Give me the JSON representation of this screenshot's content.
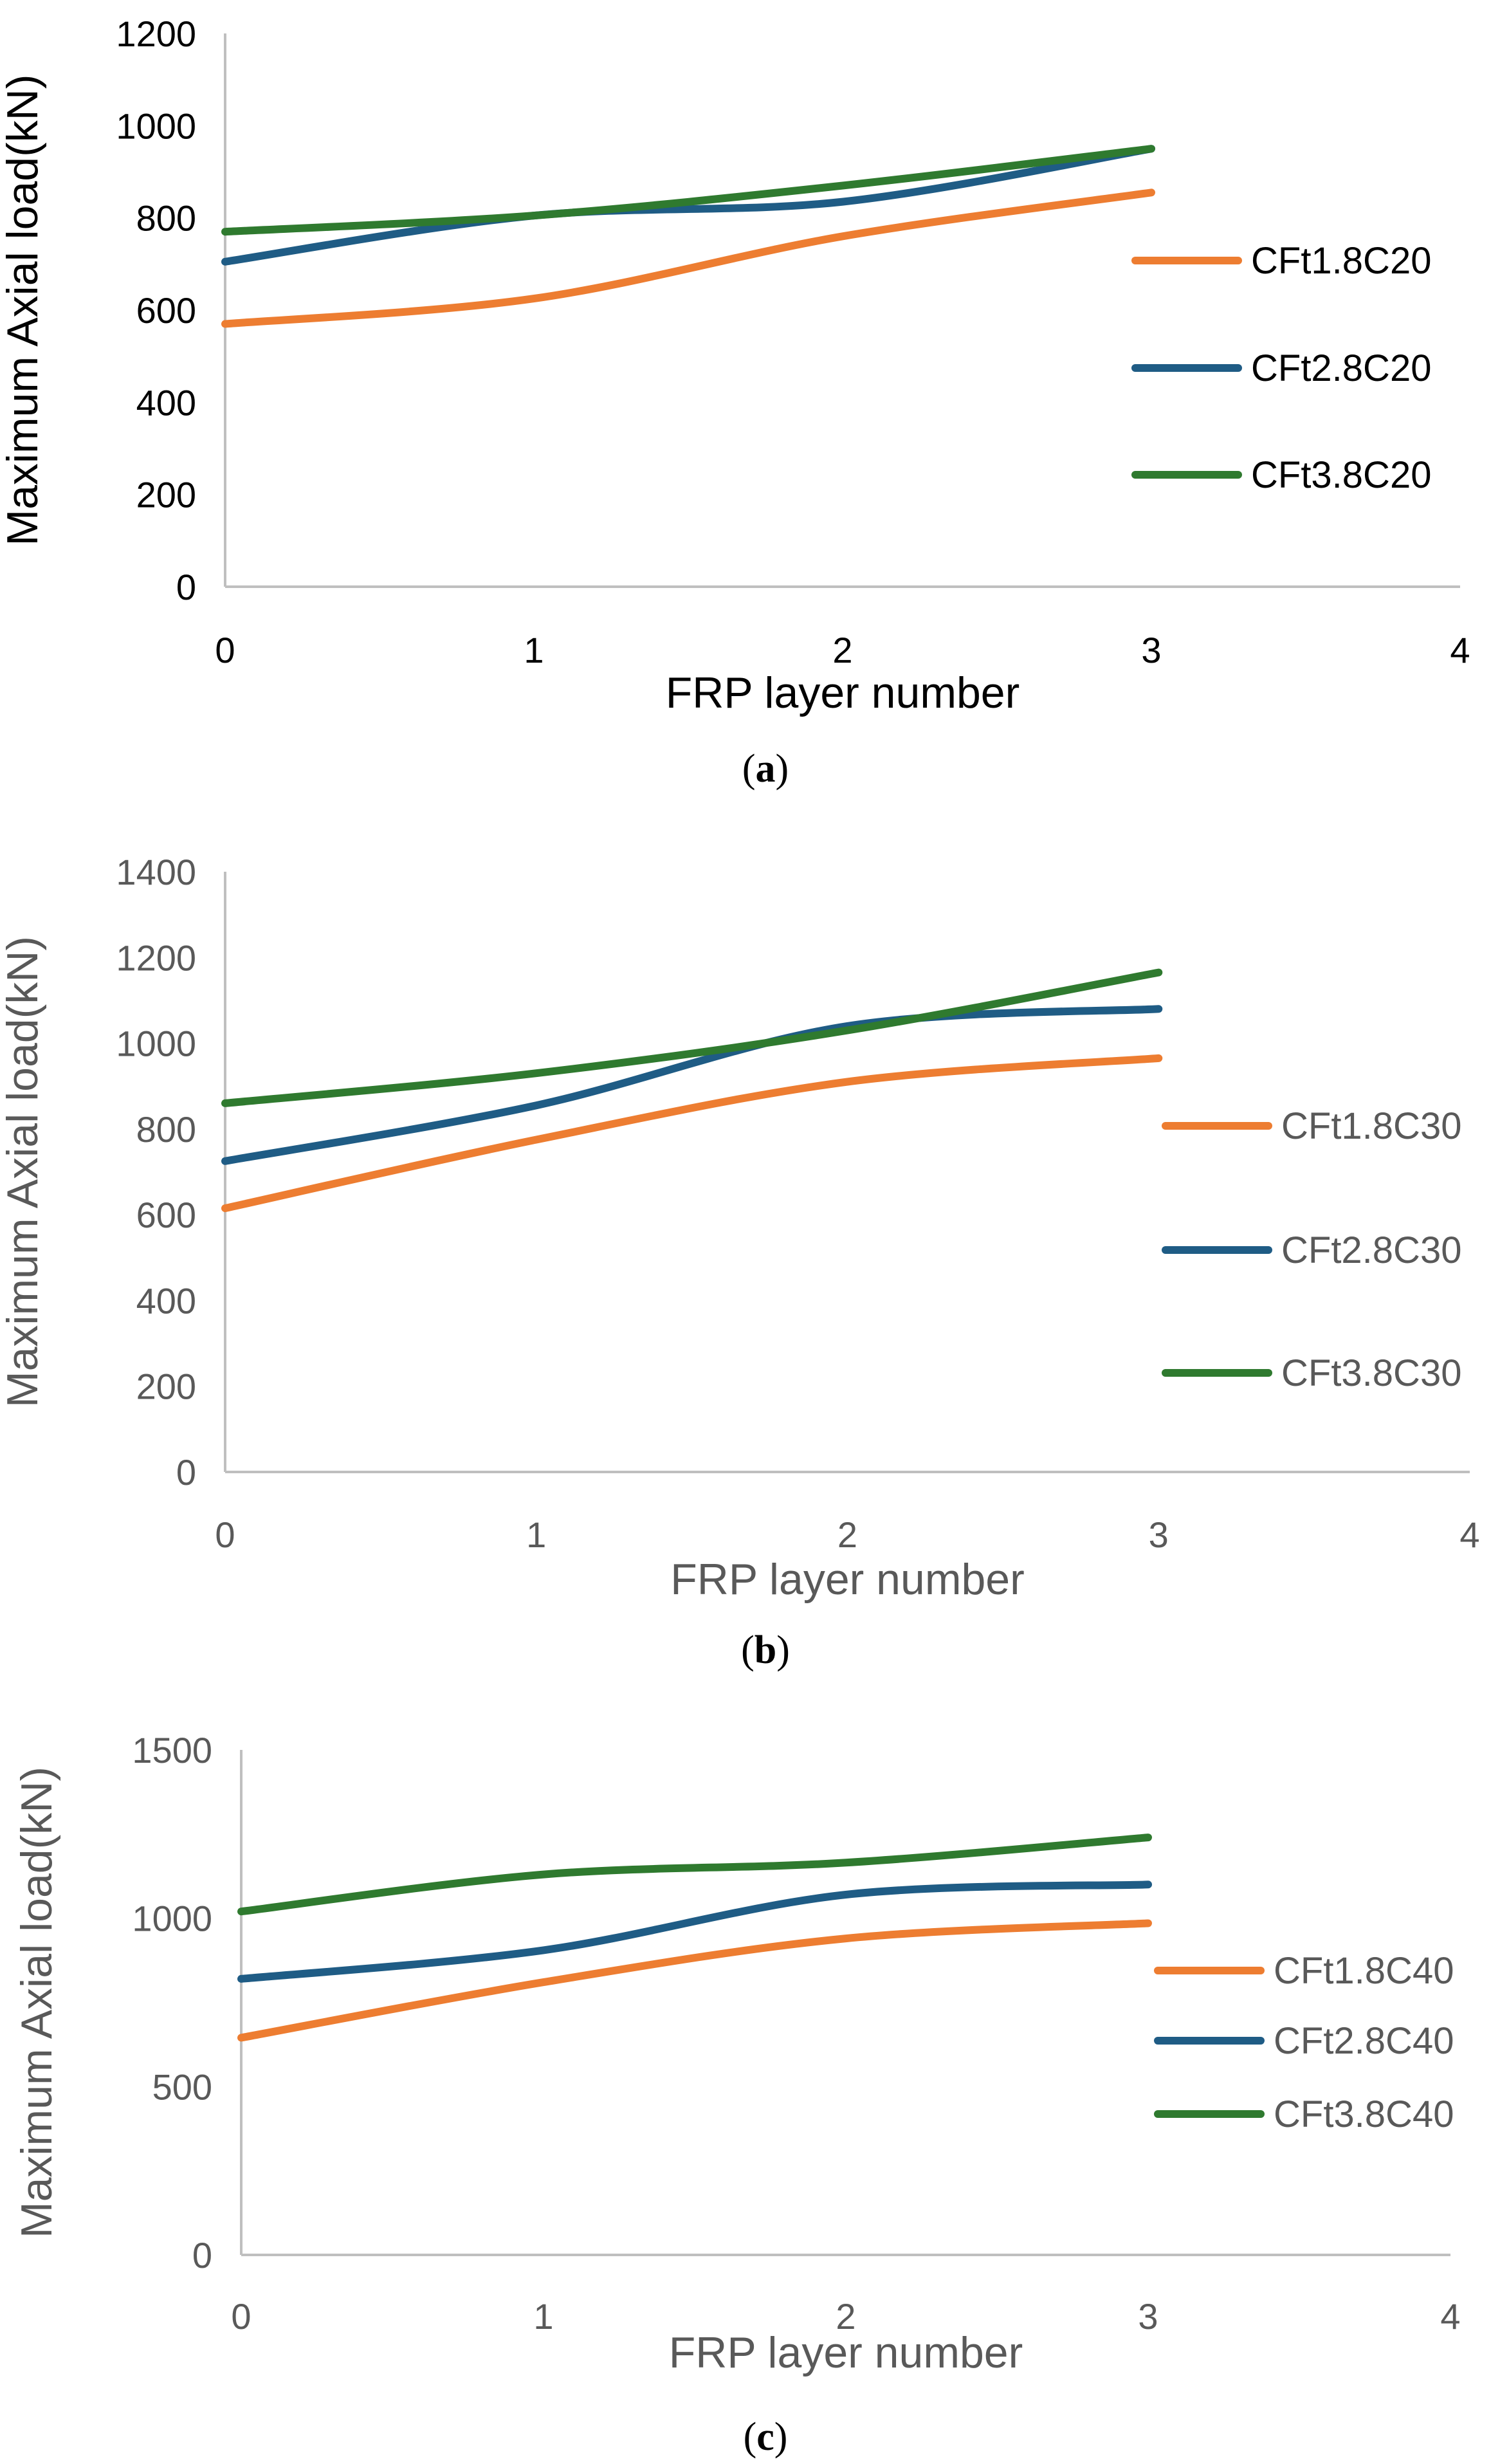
{
  "colors": {
    "orange": "#ED7D31",
    "blue": "#1F5C85",
    "green": "#2F7A2F"
  },
  "chart_data": [
    {
      "type": "line",
      "caption_letter": "a",
      "title": "",
      "xlabel": "FRP layer number",
      "ylabel": "Maximum Axial load(kN)",
      "xlim": [
        0,
        4
      ],
      "ylim": [
        0,
        1200
      ],
      "xticks": [
        "0",
        "1",
        "2",
        "3",
        "4"
      ],
      "yticks": [
        "0",
        "200",
        "400",
        "600",
        "800",
        "1000",
        "1200"
      ],
      "x": [
        0,
        1,
        2,
        3
      ],
      "series": [
        {
          "name": "CFt1.8C20",
          "color": "#ED7D31",
          "values": [
            570,
            625,
            760,
            855
          ]
        },
        {
          "name": "CFt2.8C20",
          "color": "#1F5C85",
          "values": [
            705,
            805,
            835,
            950
          ]
        },
        {
          "name": "CFt3.8C20",
          "color": "#2F7A2F",
          "values": [
            770,
            805,
            870,
            950
          ]
        }
      ]
    },
    {
      "type": "line",
      "caption_letter": "b",
      "title": "",
      "xlabel": "FRP layer number",
      "ylabel": "Maximum Axial load(kN)",
      "xlim": [
        0,
        4
      ],
      "ylim": [
        0,
        1400
      ],
      "xticks": [
        "0",
        "1",
        "2",
        "3",
        "4"
      ],
      "yticks": [
        "0",
        "200",
        "400",
        "600",
        "800",
        "1000",
        "1200",
        "1400"
      ],
      "x": [
        0,
        1,
        2,
        3
      ],
      "series": [
        {
          "name": "CFt1.8C30",
          "color": "#ED7D31",
          "values": [
            615,
            775,
            910,
            965
          ]
        },
        {
          "name": "CFt2.8C30",
          "color": "#1F5C85",
          "values": [
            725,
            855,
            1040,
            1080
          ]
        },
        {
          "name": "CFt3.8C30",
          "color": "#2F7A2F",
          "values": [
            860,
            930,
            1030,
            1165
          ]
        }
      ]
    },
    {
      "type": "line",
      "caption_letter": "c",
      "title": "",
      "xlabel": "FRP layer number",
      "ylabel": "Maximum Axial load(kN)",
      "xlim": [
        0,
        4
      ],
      "ylim": [
        0,
        1500
      ],
      "xticks": [
        "0",
        "1",
        "2",
        "3",
        "4"
      ],
      "yticks": [
        "0",
        "500",
        "1000",
        "1500"
      ],
      "x": [
        0,
        1,
        2,
        3
      ],
      "series": [
        {
          "name": "CFt1.8C40",
          "color": "#ED7D31",
          "values": [
            645,
            810,
            940,
            985
          ]
        },
        {
          "name": "CFt2.8C40",
          "color": "#1F5C85",
          "values": [
            820,
            905,
            1070,
            1100
          ]
        },
        {
          "name": "CFt3.8C40",
          "color": "#2F7A2F",
          "values": [
            1020,
            1130,
            1165,
            1240
          ]
        }
      ]
    }
  ]
}
